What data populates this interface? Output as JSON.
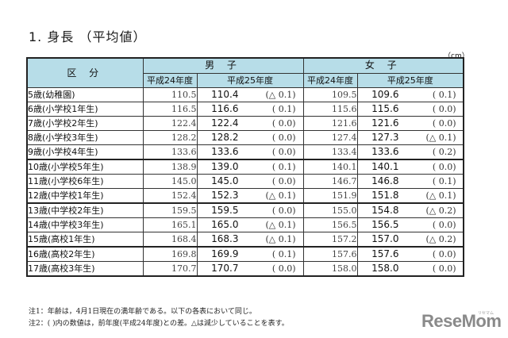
{
  "title": "1. 身長 （平均値）",
  "unit": "（cm）",
  "header": {
    "category": "区 分",
    "boys": "男 子",
    "girls": "女 子",
    "prev_year": "平成24年度",
    "cur_year": "平成25年度"
  },
  "rows": [
    {
      "label": "5歳(幼稚園)",
      "b24": "110.5",
      "b25": "110.4",
      "bd": "(△ 0.1)",
      "g24": "109.5",
      "g25": "109.6",
      "gd": "(   0.1)"
    },
    {
      "label": "6歳(小学校1年生)",
      "b24": "116.5",
      "b25": "116.6",
      "bd": "(   0.1)",
      "g24": "115.6",
      "g25": "115.6",
      "gd": "(   0.0)"
    },
    {
      "label": "7歳(小学校2年生)",
      "b24": "122.4",
      "b25": "122.4",
      "bd": "(   0.0)",
      "g24": "121.6",
      "g25": "121.6",
      "gd": "(   0.0)"
    },
    {
      "label": "8歳(小学校3年生)",
      "b24": "128.2",
      "b25": "128.2",
      "bd": "(   0.0)",
      "g24": "127.4",
      "g25": "127.3",
      "gd": "(△ 0.1)"
    },
    {
      "label": "9歳(小学校4年生)",
      "b24": "133.6",
      "b25": "133.6",
      "bd": "(   0.0)",
      "g24": "133.4",
      "g25": "133.6",
      "gd": "(   0.2)"
    },
    {
      "label": "10歳(小学校5年生)",
      "b24": "138.9",
      "b25": "139.0",
      "bd": "(   0.1)",
      "g24": "140.1",
      "g25": "140.1",
      "gd": "(   0.0)"
    },
    {
      "label": "11歳(小学校6年生)",
      "b24": "145.0",
      "b25": "145.0",
      "bd": "(   0.0)",
      "g24": "146.7",
      "g25": "146.8",
      "gd": "(   0.1)"
    },
    {
      "label": "12歳(中学校1年生)",
      "b24": "152.4",
      "b25": "152.3",
      "bd": "(△ 0.1)",
      "g24": "151.9",
      "g25": "151.8",
      "gd": "(△ 0.1)"
    },
    {
      "label": "13歳(中学校2年生)",
      "b24": "159.5",
      "b25": "159.5",
      "bd": "(   0.0)",
      "g24": "155.0",
      "g25": "154.8",
      "gd": "(△ 0.2)"
    },
    {
      "label": "14歳(中学校3年生)",
      "b24": "165.1",
      "b25": "165.0",
      "bd": "(△ 0.1)",
      "g24": "156.5",
      "g25": "156.5",
      "gd": "(   0.0)"
    },
    {
      "label": "15歳(高校1年生)",
      "b24": "168.4",
      "b25": "168.3",
      "bd": "(△ 0.1)",
      "g24": "157.2",
      "g25": "157.0",
      "gd": "(△ 0.2)"
    },
    {
      "label": "16歳(高校2年生)",
      "b24": "169.8",
      "b25": "169.9",
      "bd": "(   0.1)",
      "g24": "157.6",
      "g25": "157.6",
      "gd": "(   0.0)"
    },
    {
      "label": "17歳(高校3年生)",
      "b24": "170.7",
      "b25": "170.7",
      "bd": "(   0.0)",
      "g24": "158.0",
      "g25": "158.0",
      "gd": "(   0.0)"
    }
  ],
  "notes": [
    "注1：年齢は，4月1日現在の満年齢である。以下の各表において同じ。",
    "注2：( )内の数値は，前年度(平成24年度)との差。△は減少していることを表す。"
  ],
  "logo": {
    "text": "ReseMom",
    "sub": "リセマム"
  },
  "colors": {
    "header_bg": "#b7dde8",
    "border": "#222222",
    "logo": "#8a8a8a"
  }
}
